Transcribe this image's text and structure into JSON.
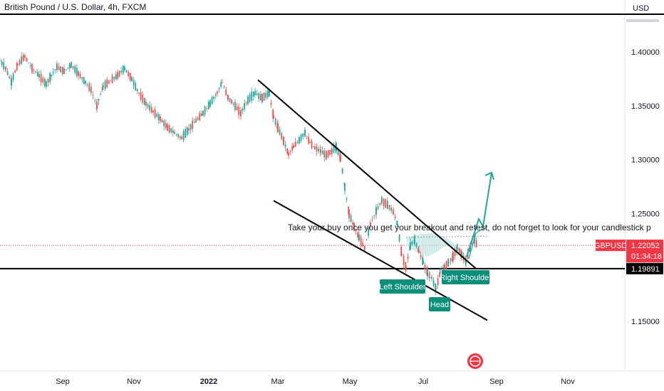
{
  "header": {
    "title": "British Pound / U.S. Dollar, 4h, FXCM",
    "currency": "USD"
  },
  "colors": {
    "up": "#26a69a",
    "down": "#ef5350",
    "accent_red": "#f23645",
    "pattern_green": "#0a8f7a",
    "arrow": "#26a69a",
    "line": "#000000"
  },
  "chart_data": {
    "type": "candlestick",
    "symbol": "GBPUSD",
    "interval": "4h",
    "source": "FXCM",
    "x_labels": [
      "Sep",
      "Nov",
      "2022",
      "Mar",
      "May",
      "Jul",
      "Sep",
      "Nov"
    ],
    "y_ticks": [
      "1.40000",
      "1.35000",
      "1.30000",
      "1.25000",
      "1.15000"
    ],
    "ylim": [
      1.12,
      1.44
    ],
    "price_badges": {
      "symbol": "GBPUSD",
      "last_price": "1.22052",
      "countdown": "01:34:18",
      "horizontal_level": "1.19891"
    },
    "horizontal_lines": [
      1.4356,
      1.19891
    ],
    "price_path": [
      [
        0,
        1.392
      ],
      [
        8,
        1.385
      ],
      [
        16,
        1.372
      ],
      [
        25,
        1.388
      ],
      [
        35,
        1.396
      ],
      [
        45,
        1.385
      ],
      [
        55,
        1.378
      ],
      [
        65,
        1.37
      ],
      [
        72,
        1.378
      ],
      [
        80,
        1.386
      ],
      [
        90,
        1.382
      ],
      [
        100,
        1.388
      ],
      [
        110,
        1.38
      ],
      [
        120,
        1.372
      ],
      [
        128,
        1.365
      ],
      [
        136,
        1.35
      ],
      [
        145,
        1.368
      ],
      [
        155,
        1.373
      ],
      [
        165,
        1.378
      ],
      [
        175,
        1.385
      ],
      [
        185,
        1.375
      ],
      [
        195,
        1.362
      ],
      [
        205,
        1.352
      ],
      [
        215,
        1.345
      ],
      [
        225,
        1.338
      ],
      [
        235,
        1.33
      ],
      [
        245,
        1.325
      ],
      [
        255,
        1.32
      ],
      [
        265,
        1.328
      ],
      [
        275,
        1.336
      ],
      [
        285,
        1.343
      ],
      [
        295,
        1.352
      ],
      [
        305,
        1.362
      ],
      [
        312,
        1.372
      ],
      [
        320,
        1.358
      ],
      [
        330,
        1.35
      ],
      [
        338,
        1.343
      ],
      [
        348,
        1.355
      ],
      [
        358,
        1.362
      ],
      [
        368,
        1.357
      ],
      [
        378,
        1.362
      ],
      [
        384,
        1.34
      ],
      [
        390,
        1.33
      ],
      [
        398,
        1.318
      ],
      [
        405,
        1.305
      ],
      [
        412,
        1.312
      ],
      [
        420,
        1.318
      ],
      [
        428,
        1.325
      ],
      [
        435,
        1.316
      ],
      [
        442,
        1.311
      ],
      [
        450,
        1.308
      ],
      [
        458,
        1.304
      ],
      [
        466,
        1.308
      ],
      [
        472,
        1.312
      ],
      [
        478,
        1.302
      ],
      [
        484,
        1.275
      ],
      [
        490,
        1.25
      ],
      [
        497,
        1.238
      ],
      [
        504,
        1.228
      ],
      [
        512,
        1.218
      ],
      [
        520,
        1.24
      ],
      [
        528,
        1.252
      ],
      [
        536,
        1.262
      ],
      [
        544,
        1.258
      ],
      [
        552,
        1.252
      ],
      [
        558,
        1.24
      ],
      [
        564,
        1.212
      ],
      [
        570,
        1.2
      ],
      [
        576,
        1.22
      ],
      [
        582,
        1.226
      ],
      [
        588,
        1.215
      ],
      [
        594,
        1.205
      ],
      [
        600,
        1.195
      ],
      [
        606,
        1.19
      ],
      [
        612,
        1.18
      ],
      [
        618,
        1.195
      ],
      [
        624,
        1.2
      ],
      [
        630,
        1.205
      ],
      [
        636,
        1.21
      ],
      [
        642,
        1.218
      ],
      [
        648,
        1.212
      ],
      [
        654,
        1.205
      ],
      [
        660,
        1.218
      ],
      [
        666,
        1.226
      ],
      [
        670,
        1.22
      ]
    ],
    "trendlines": [
      {
        "name": "upper-trendline",
        "points": [
          [
            362,
            1.374
          ],
          [
            668,
            1.199
          ]
        ]
      },
      {
        "name": "lower-trendline",
        "points": [
          [
            384,
            1.262
          ],
          [
            684,
            1.151
          ]
        ]
      }
    ],
    "annotations": {
      "text": "Take your buy once you get your breakout and retest, do not forget to look for your candlestick p",
      "left_shoulder": "Left Shoulder",
      "head": "Head",
      "right_shoulder": "Right Shoulder"
    }
  }
}
